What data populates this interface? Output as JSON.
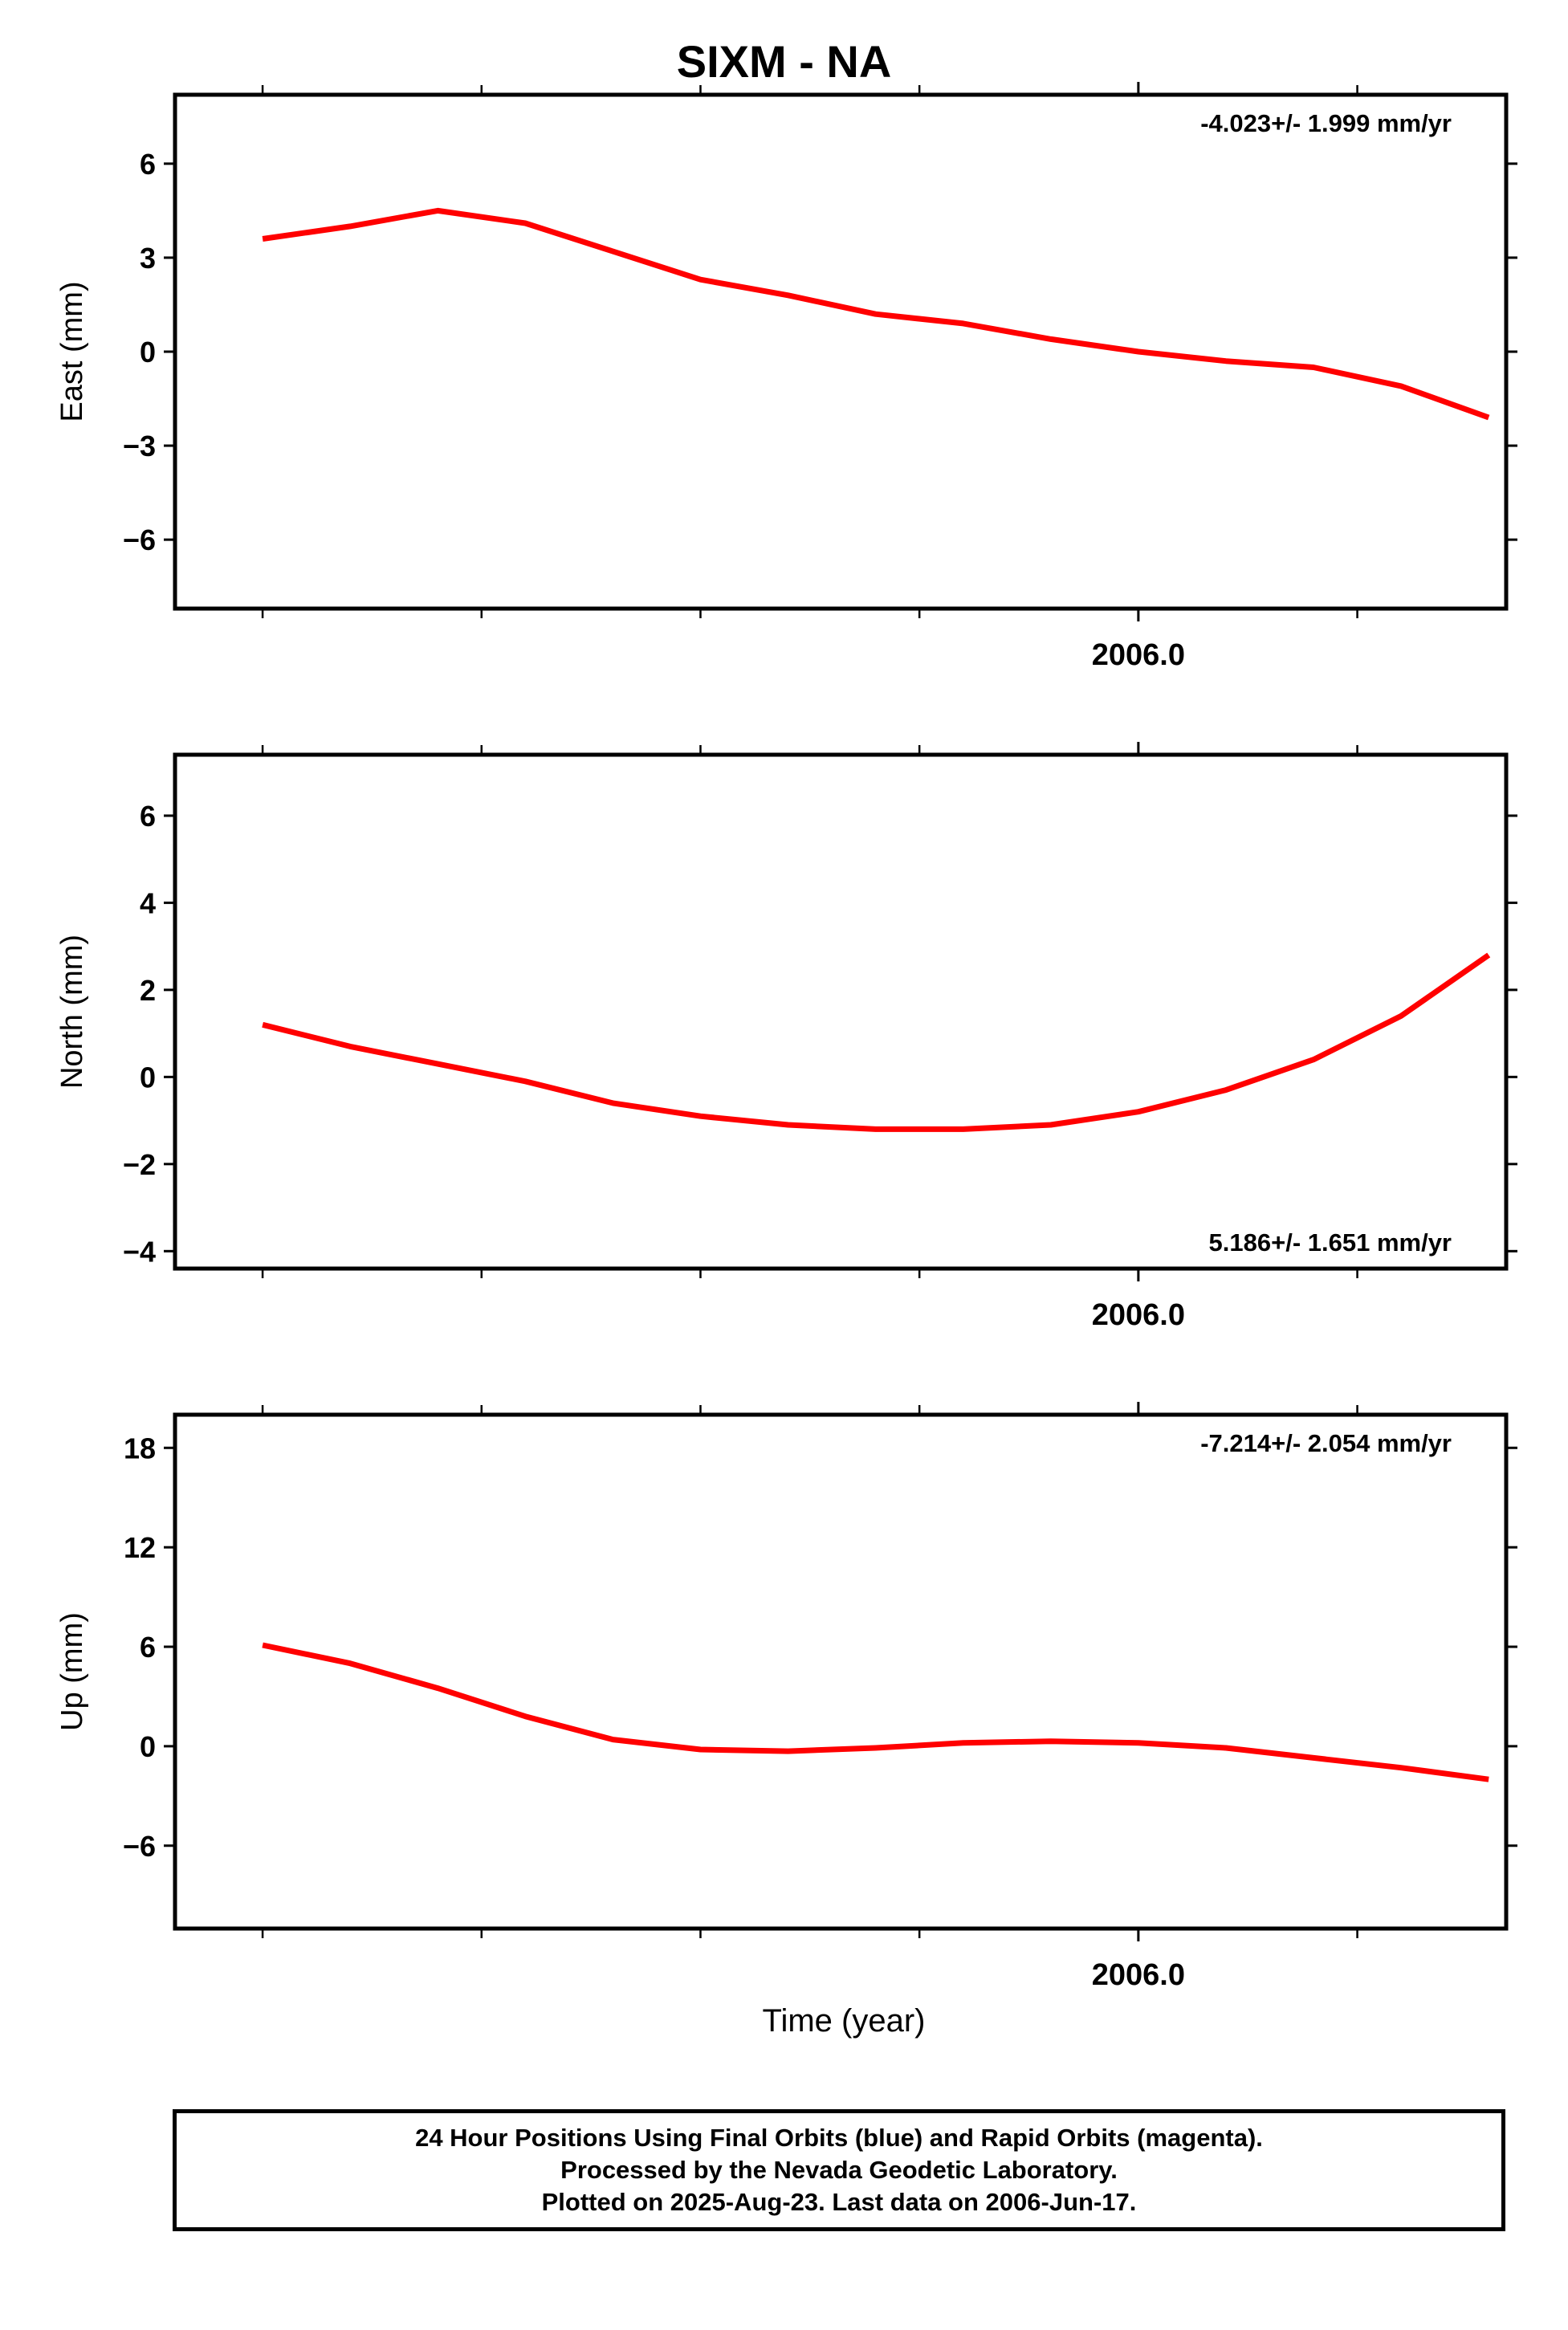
{
  "page": {
    "title": "SIXM - NA",
    "x_axis_label": "Time (year)",
    "footer": [
      "24 Hour Positions Using Final Orbits (blue) and Rapid Orbits (magenta).",
      "Processed by the Nevada Geodetic Laboratory.",
      "Plotted on 2025-Aug-23. Last data on 2006-Jun-17."
    ]
  },
  "colors": {
    "points": "#0000ff",
    "fit": "#ff0000",
    "frame": "#000000"
  },
  "chart_data": [
    {
      "type": "scatter",
      "ylabel": "East (mm)",
      "ylim": [
        -8.2,
        8.2
      ],
      "yticks": [
        -6,
        -3,
        0,
        3,
        6
      ],
      "xlim": [
        2004.9,
        2006.42
      ],
      "xticks": [
        2006.0
      ],
      "rate": "-4.023+/- 1.999 mm/yr",
      "rate_position": "top-right",
      "fit": [
        [
          2005.0,
          3.6
        ],
        [
          2005.1,
          4.0
        ],
        [
          2005.2,
          4.5
        ],
        [
          2005.3,
          4.1
        ],
        [
          2005.4,
          3.2
        ],
        [
          2005.5,
          2.3
        ],
        [
          2005.6,
          1.8
        ],
        [
          2005.7,
          1.2
        ],
        [
          2005.8,
          0.9
        ],
        [
          2005.9,
          0.4
        ],
        [
          2006.0,
          0.0
        ],
        [
          2006.1,
          -0.3
        ],
        [
          2006.2,
          -0.5
        ],
        [
          2006.3,
          -1.1
        ],
        [
          2006.4,
          -2.1
        ]
      ],
      "points": []
    },
    {
      "type": "scatter",
      "ylabel": "North (mm)",
      "ylim": [
        -4.4,
        7.4
      ],
      "yticks": [
        -4,
        -2,
        0,
        2,
        4,
        6
      ],
      "xlim": [
        2004.9,
        2006.42
      ],
      "xticks": [
        2006.0
      ],
      "rate": "5.186+/- 1.651 mm/yr",
      "rate_position": "bottom-right",
      "fit": [
        [
          2005.0,
          1.2
        ],
        [
          2005.1,
          0.7
        ],
        [
          2005.2,
          0.3
        ],
        [
          2005.3,
          -0.1
        ],
        [
          2005.4,
          -0.6
        ],
        [
          2005.5,
          -0.9
        ],
        [
          2005.6,
          -1.1
        ],
        [
          2005.7,
          -1.2
        ],
        [
          2005.8,
          -1.2
        ],
        [
          2005.9,
          -1.1
        ],
        [
          2006.0,
          -0.8
        ],
        [
          2006.1,
          -0.3
        ],
        [
          2006.2,
          0.4
        ],
        [
          2006.3,
          1.4
        ],
        [
          2006.4,
          2.8
        ]
      ],
      "points": []
    },
    {
      "type": "scatter",
      "ylabel": "Up (mm)",
      "ylim": [
        -11,
        20
      ],
      "yticks": [
        -6,
        0,
        6,
        12,
        18
      ],
      "xlim": [
        2004.9,
        2006.42
      ],
      "xticks": [
        2006.0
      ],
      "rate": "-7.214+/- 2.054 mm/yr",
      "rate_position": "top-right",
      "fit": [
        [
          2005.0,
          6.1
        ],
        [
          2005.1,
          5.0
        ],
        [
          2005.2,
          3.5
        ],
        [
          2005.3,
          1.8
        ],
        [
          2005.4,
          0.4
        ],
        [
          2005.5,
          -0.2
        ],
        [
          2005.6,
          -0.3
        ],
        [
          2005.7,
          -0.1
        ],
        [
          2005.8,
          0.2
        ],
        [
          2005.9,
          0.3
        ],
        [
          2006.0,
          0.2
        ],
        [
          2006.1,
          -0.1
        ],
        [
          2006.2,
          -0.7
        ],
        [
          2006.3,
          -1.3
        ],
        [
          2006.4,
          -2.0
        ]
      ],
      "points": []
    }
  ]
}
